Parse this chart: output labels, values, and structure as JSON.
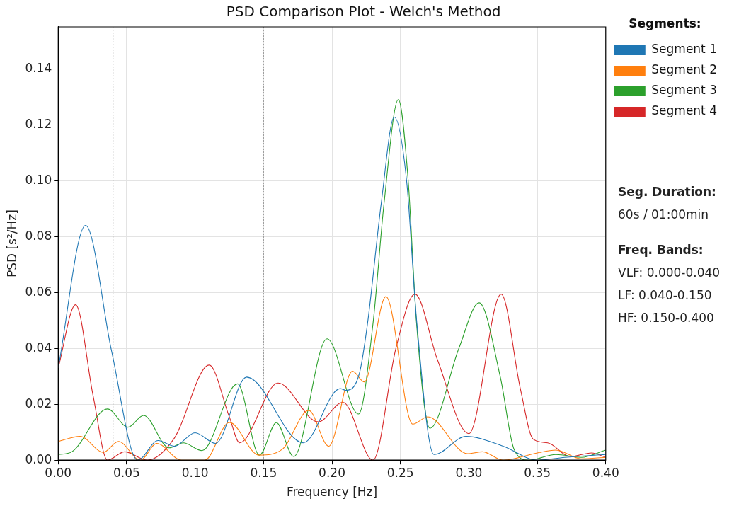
{
  "chart_data": {
    "type": "line",
    "title": "PSD Comparison Plot - Welch's Method",
    "xlabel": "Frequency [Hz]",
    "ylabel": "PSD [s²/Hz]",
    "legend_title": "Segments:",
    "series": [
      {
        "name": "Segment 1",
        "color": "#1f77b4",
        "x": [
          0,
          0.02,
          0.039,
          0.058,
          0.073,
          0.085,
          0.1,
          0.115,
          0.1376,
          0.179,
          0.206,
          0.21,
          0.22,
          0.226,
          0.236,
          0.2455,
          0.2545,
          0.262,
          0.2745,
          0.298,
          0.325,
          0.35,
          0.37,
          0.4
        ],
        "values": [
          0.033,
          0.084,
          0.039,
          0,
          0.007,
          0.005,
          0.0098,
          0.006,
          0.0297,
          0.0062,
          0.0256,
          0.025,
          0.031,
          0.049,
          0.092,
          0.1227,
          0.1,
          0.049,
          0.002,
          0.0085,
          0.005,
          0,
          0.001,
          0.002
        ]
      },
      {
        "name": "Segment 2",
        "color": "#ff7f0e",
        "x": [
          0,
          0.016,
          0.033,
          0.044,
          0.06,
          0.072,
          0.09,
          0.107,
          0.125,
          0.1467,
          0.164,
          0.183,
          0.1976,
          0.215,
          0.2236,
          0.2394,
          0.259,
          0.27,
          0.299,
          0.31,
          0.325,
          0.35,
          0.3636,
          0.382,
          0.4
        ],
        "values": [
          0.0067,
          0.0085,
          0.0028,
          0.0067,
          0,
          0.006,
          0,
          0,
          0.0135,
          0.0018,
          0.004,
          0.0178,
          0.005,
          0.0318,
          0.028,
          0.0585,
          0.0129,
          0.0155,
          0.0023,
          0.003,
          0,
          0.0026,
          0.0036,
          0.0005,
          0.001
        ]
      },
      {
        "name": "Segment 3",
        "color": "#2ca02c",
        "x": [
          0,
          0.01,
          0.036,
          0.051,
          0.0624,
          0.081,
          0.0915,
          0.105,
          0.131,
          0.147,
          0.1594,
          0.172,
          0.1964,
          0.2194,
          0.23,
          0.238,
          0.2485,
          0.2556,
          0.2618,
          0.2715,
          0.2927,
          0.3075,
          0.323,
          0.333,
          0.3436,
          0.3636,
          0.382,
          0.4
        ],
        "values": [
          0.002,
          0.003,
          0.0183,
          0.0118,
          0.016,
          0.0044,
          0.0062,
          0.0034,
          0.0273,
          0.0018,
          0.0134,
          0.0013,
          0.0434,
          0.0165,
          0.049,
          0.0917,
          0.129,
          0.1005,
          0.0488,
          0.0114,
          0.04,
          0.0563,
          0.0297,
          0.0039,
          0,
          0.002,
          0.001,
          0.0036
        ]
      },
      {
        "name": "Segment 4",
        "color": "#d62728",
        "x": [
          0,
          0.0127,
          0.0255,
          0.036,
          0.0485,
          0.065,
          0.085,
          0.1103,
          0.125,
          0.1325,
          0.1606,
          0.19,
          0.208,
          0.23,
          0.2467,
          0.2606,
          0.277,
          0.3,
          0.3236,
          0.3376,
          0.347,
          0.3576,
          0.374,
          0.3897,
          0.4
        ],
        "values": [
          0.033,
          0.0556,
          0.023,
          0,
          0.003,
          0,
          0.008,
          0.034,
          0.0155,
          0.0062,
          0.0276,
          0.0137,
          0.0207,
          0,
          0.04,
          0.0594,
          0.036,
          0.0095,
          0.0594,
          0.0256,
          0.0075,
          0.0062,
          0.0013,
          0.0026,
          0.001
        ]
      }
    ],
    "xlim": [
      0,
      0.4
    ],
    "xticks": [
      {
        "value": 0,
        "label": "0.00"
      },
      {
        "value": 0.05,
        "label": "0.05"
      },
      {
        "value": 0.1,
        "label": "0.10"
      },
      {
        "value": 0.15,
        "label": "0.15"
      },
      {
        "value": 0.2,
        "label": "0.20"
      },
      {
        "value": 0.25,
        "label": "0.25"
      },
      {
        "value": 0.3,
        "label": "0.30"
      },
      {
        "value": 0.35,
        "label": "0.35"
      },
      {
        "value": 0.4,
        "label": "0.40"
      }
    ],
    "ylim": [
      0,
      0.155
    ],
    "yticks": [
      {
        "value": 0,
        "label": "0.00"
      },
      {
        "value": 0.02,
        "label": "0.02"
      },
      {
        "value": 0.04,
        "label": "0.04"
      },
      {
        "value": 0.06,
        "label": "0.06"
      },
      {
        "value": 0.08,
        "label": "0.08"
      },
      {
        "value": 0.1,
        "label": "0.10"
      },
      {
        "value": 0.12,
        "label": "0.12"
      },
      {
        "value": 0.14,
        "label": "0.14"
      }
    ],
    "ref_lines": [
      {
        "axis": "x",
        "value": 0.04,
        "color": "#999999",
        "line_style": "dotted"
      },
      {
        "axis": "x",
        "value": 0.15,
        "color": "#999999",
        "line_style": "dotted"
      }
    ],
    "annotations": [
      "Seg. Duration:",
      "60s / 01:00min",
      "Freq. Bands:",
      "VLF: 0.000-0.040",
      "LF: 0.040-0.150",
      "HF: 0.150-0.400"
    ],
    "grid": true,
    "legend": "right",
    "marker": "none",
    "line_style": "solid"
  }
}
